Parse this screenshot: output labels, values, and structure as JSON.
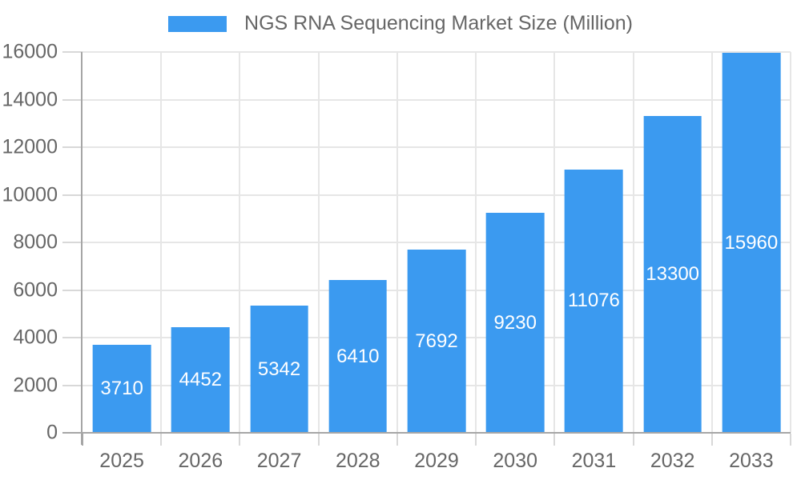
{
  "legend": {
    "position": "top"
  },
  "chart_data": {
    "type": "bar",
    "title": "NGS RNA Sequencing Market Size (Million)",
    "categories": [
      "2025",
      "2026",
      "2027",
      "2028",
      "2029",
      "2030",
      "2031",
      "2032",
      "2033"
    ],
    "values": [
      3710,
      4452,
      5342,
      6410,
      7692,
      9230,
      11076,
      13300,
      15960
    ],
    "xlabel": "",
    "ylabel": "",
    "ylim": [
      0,
      16000
    ],
    "ytick_step": 2000,
    "yticks": [
      0,
      2000,
      4000,
      6000,
      8000,
      10000,
      12000,
      14000,
      16000
    ],
    "grid": true,
    "legend_position": "top",
    "value_labels": "inside-center",
    "bar_color": "#3B9AF0",
    "bar_label_color": "#FFFFFF",
    "axis_label_color": "#666666",
    "legend_text_color": "#666666",
    "grid_color": "#E6E6E6",
    "axis_line_color": "#A6A6A6",
    "tick_color": "#D8D8D8",
    "background_color": "#FFFFFF"
  }
}
